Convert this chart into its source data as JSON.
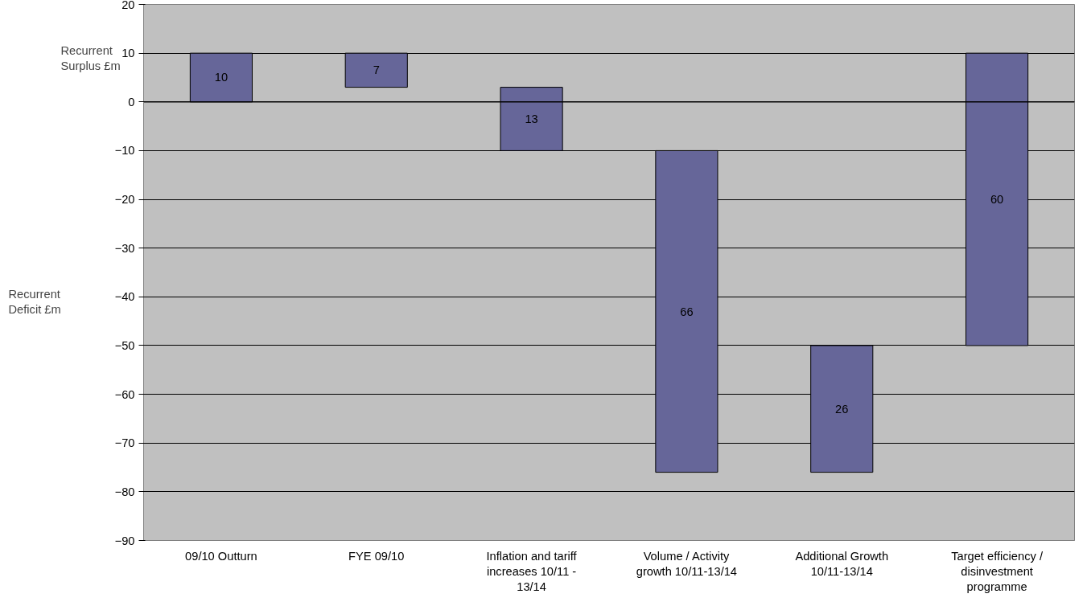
{
  "chart_data": {
    "type": "bar",
    "categories": [
      "09/10 Outturn",
      "FYE 09/10",
      "Inflation and tariff increases 10/11 - 13/14",
      "Volume / Activity growth 10/11-13/14",
      "Additional Growth 10/11-13/14",
      "Target efficiency / disinvestment programme"
    ],
    "values": [
      10,
      7,
      -13,
      -66,
      26,
      60
    ],
    "base": [
      0,
      3,
      3,
      -10,
      -76,
      -50
    ],
    "value_labels": [
      "10",
      "7",
      "13",
      "66",
      "26",
      "60"
    ],
    "color": "#666699",
    "ylim": [
      -90,
      20
    ],
    "yticks": [
      -90,
      -80,
      -70,
      -60,
      -50,
      -40,
      -30,
      -20,
      -10,
      0,
      10,
      20
    ],
    "grid": "y",
    "ref_lines": [
      {
        "axis": "y",
        "value": 0,
        "color": "#000000"
      }
    ],
    "annotations": [
      "Recurrent Surplus £m",
      "Recurrent Deficit £m"
    ]
  }
}
